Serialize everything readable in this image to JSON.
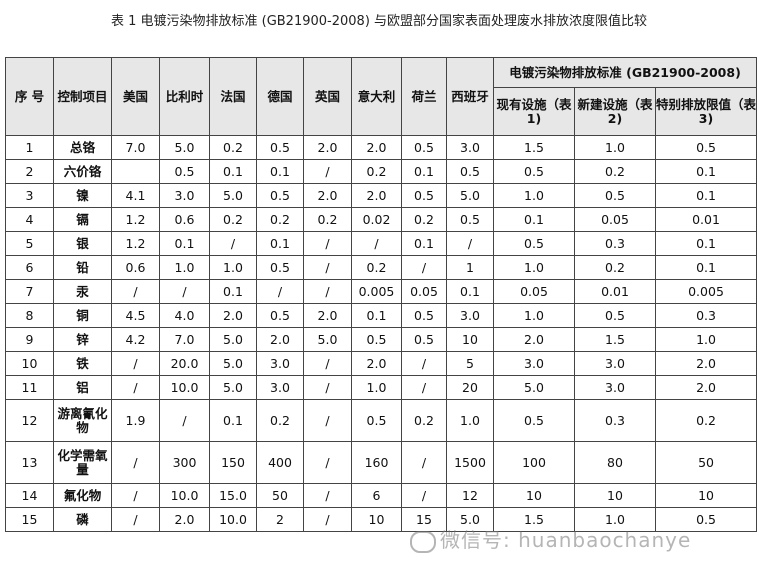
{
  "title": "表 1 电镀污染物排放标准 (GB21900-2008) 与欧盟部分国家表面处理废水排放浓度限值比较",
  "header": {
    "seq": "序 号",
    "control": "控制项目",
    "countries": [
      "美国",
      "比利时",
      "法国",
      "德国",
      "英国",
      "意大利",
      "荷兰",
      "西班牙"
    ],
    "gb_group": "电镀污染物排放标准 (GB21900-2008)",
    "gb_sub": [
      "现有设施（表 1)",
      "新建设施（表 2)",
      "特别排放限值（表 3)"
    ]
  },
  "rows": [
    {
      "no": "1",
      "item": "总铬",
      "v": [
        "7.0",
        "5.0",
        "0.2",
        "0.5",
        "2.0",
        "2.0",
        "0.5",
        "3.0",
        "1.5",
        "1.0",
        "0.5"
      ]
    },
    {
      "no": "2",
      "item": "六价铬",
      "v": [
        "",
        "0.5",
        "0.1",
        "0.1",
        "/",
        "0.2",
        "0.1",
        "0.5",
        "0.5",
        "0.2",
        "0.1"
      ]
    },
    {
      "no": "3",
      "item": "镍",
      "v": [
        "4.1",
        "3.0",
        "5.0",
        "0.5",
        "2.0",
        "2.0",
        "0.5",
        "5.0",
        "1.0",
        "0.5",
        "0.1"
      ]
    },
    {
      "no": "4",
      "item": "镉",
      "v": [
        "1.2",
        "0.6",
        "0.2",
        "0.2",
        "0.2",
        "0.02",
        "0.2",
        "0.5",
        "0.1",
        "0.05",
        "0.01"
      ]
    },
    {
      "no": "5",
      "item": "银",
      "v": [
        "1.2",
        "0.1",
        "/",
        "0.1",
        "/",
        "/",
        "0.1",
        "/",
        "0.5",
        "0.3",
        "0.1"
      ]
    },
    {
      "no": "6",
      "item": "铅",
      "v": [
        "0.6",
        "1.0",
        "1.0",
        "0.5",
        "/",
        "0.2",
        "/",
        "1",
        "1.0",
        "0.2",
        "0.1"
      ]
    },
    {
      "no": "7",
      "item": "汞",
      "v": [
        "/",
        "/",
        "0.1",
        "/",
        "/",
        "0.005",
        "0.05",
        "0.1",
        "0.05",
        "0.01",
        "0.005"
      ]
    },
    {
      "no": "8",
      "item": "铜",
      "v": [
        "4.5",
        "4.0",
        "2.0",
        "0.5",
        "2.0",
        "0.1",
        "0.5",
        "3.0",
        "1.0",
        "0.5",
        "0.3"
      ]
    },
    {
      "no": "9",
      "item": "锌",
      "v": [
        "4.2",
        "7.0",
        "5.0",
        "2.0",
        "5.0",
        "0.5",
        "0.5",
        "10",
        "2.0",
        "1.5",
        "1.0"
      ]
    },
    {
      "no": "10",
      "item": "铁",
      "v": [
        "/",
        "20.0",
        "5.0",
        "3.0",
        "/",
        "2.0",
        "/",
        "5",
        "3.0",
        "3.0",
        "2.0"
      ]
    },
    {
      "no": "11",
      "item": "铝",
      "v": [
        "/",
        "10.0",
        "5.0",
        "3.0",
        "/",
        "1.0",
        "/",
        "20",
        "5.0",
        "3.0",
        "2.0"
      ]
    },
    {
      "no": "12",
      "item": "游离氰化物",
      "v": [
        "1.9",
        "/",
        "0.1",
        "0.2",
        "/",
        "0.5",
        "0.2",
        "1.0",
        "0.5",
        "0.3",
        "0.2"
      ]
    },
    {
      "no": "13",
      "item": "化学需氧量",
      "v": [
        "/",
        "300",
        "150",
        "400",
        "/",
        "160",
        "/",
        "1500",
        "100",
        "80",
        "50"
      ]
    },
    {
      "no": "14",
      "item": "氟化物",
      "v": [
        "/",
        "10.0",
        "15.0",
        "50",
        "/",
        "6",
        "/",
        "12",
        "10",
        "10",
        "10"
      ]
    },
    {
      "no": "15",
      "item": "磷",
      "v": [
        "/",
        "2.0",
        "10.0",
        "2",
        "/",
        "10",
        "15",
        "5.0",
        "1.5",
        "1.0",
        "0.5"
      ]
    }
  ],
  "watermark": "微信号: huanbaochanye"
}
